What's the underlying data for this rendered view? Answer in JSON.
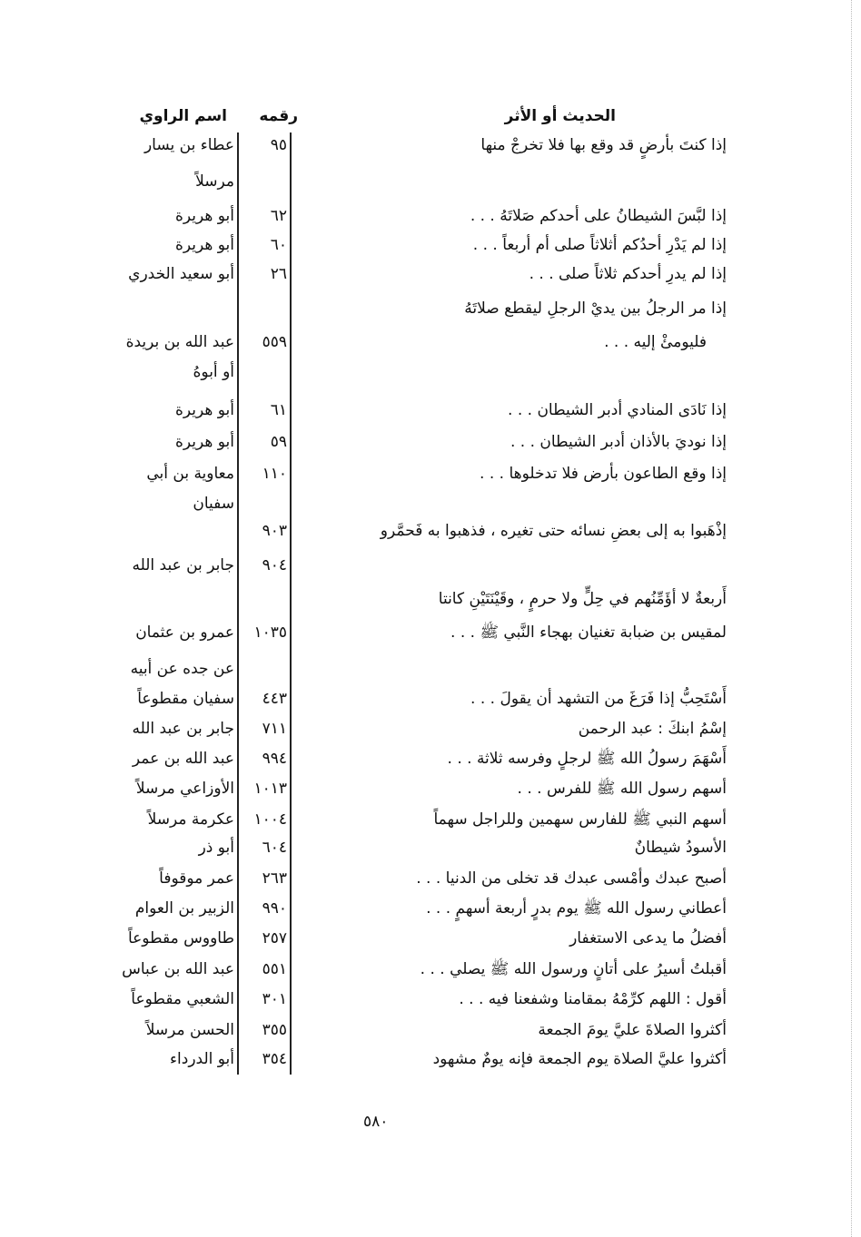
{
  "headers": {
    "hadith": "الحديث أو الأثر",
    "number": "رقمه",
    "narrator": "اسم الراوي"
  },
  "lines": [
    {
      "hadith": "إذا كنتَ بأرضٍ قد وقع بها فلا تخرجْ منها",
      "number": "٩٥",
      "narrator": "عطاء بن يسار"
    },
    {
      "hadith": "",
      "number": "",
      "narrator": "مرسلاً"
    },
    {
      "hadith": "إذا لبَّسَ الشيطانُ على أحدكم صَلاتَهُ . . .",
      "number": "٦٢",
      "narrator": "أبو هريرة"
    },
    {
      "hadith": "إذا لم يَدْرِ أحدُكم أثلاثاً صلى أم أربعاً . . .",
      "number": "٦٠",
      "narrator": "أبو هريرة"
    },
    {
      "hadith": "إذا لم يدرِ أحدكم ثلاثاً صلى . . .",
      "number": "٢٦",
      "narrator": "أبو سعيد الخدري"
    },
    {
      "hadith": "إذا مر الرجلُ بين يديْ الرجلِ ليقطع صلاتَهُ",
      "number": "",
      "narrator": ""
    },
    {
      "hadith": "فليومئْ إليه . . .",
      "number": "٥٥٩",
      "narrator": "عبد الله بن بريدة"
    },
    {
      "hadith": "",
      "number": "",
      "narrator": "أو أبوهُ"
    },
    {
      "hadith": "إذا نَادَى المنادي أدبر الشيطان . . .",
      "number": "٦١",
      "narrator": "أبو هريرة"
    },
    {
      "hadith": "إذا نوديَ بالأذان أدبر الشيطان . . .",
      "number": "٥٩",
      "narrator": "أبو هريرة"
    },
    {
      "hadith": "إذا وقع الطاعون بأرض فلا تدخلوها . . .",
      "number": "١١٠",
      "narrator": "معاوية بن أبي"
    },
    {
      "hadith": "",
      "number": "",
      "narrator": "سفيان"
    },
    {
      "hadith": "إذْهَبوا به إلى بعضِ نسائه حتى تغيره ، فذهبوا به فَحمَّرو",
      "number": "٩٠٣",
      "narrator": ""
    },
    {
      "hadith": "",
      "number": "٩٠٤",
      "narrator": "جابر بن عبد الله"
    },
    {
      "hadith": "أَربعةٌ لا أؤَمِّنُهم في حِلٍّ ولا حرمٍ ، وقَيْنَتَيْنِ كانتا",
      "number": "",
      "narrator": ""
    },
    {
      "hadith": "لمقيس بن ضبابة تغنيان بهجاء النَّبي ﷺ . . .",
      "number": "١٠٣٥",
      "narrator": "عمرو بن عثمان"
    },
    {
      "hadith": "",
      "number": "",
      "narrator": "عن جده عن أبيه"
    },
    {
      "hadith": "أَسْتَحِبُّ إذا فَرَغَ من التشهد أن يقولَ . . .",
      "number": "٤٤٣",
      "narrator": "سفيان مقطوعاً"
    },
    {
      "hadith": "إسْمُ ابنكَ : عبد الرحمن",
      "number": "٧١١",
      "narrator": "جابر بن عبد الله"
    },
    {
      "hadith": "أَسْهَمَ رسولُ الله ﷺ لرجلٍ وفرسه ثلاثة . . .",
      "number": "٩٩٤",
      "narrator": "عبد الله بن عمر"
    },
    {
      "hadith": "أسهم رسول الله ﷺ للفرس . . .",
      "number": "١٠١٣",
      "narrator": "الأوزاعي مرسلاً"
    },
    {
      "hadith": "أسهم النبي ﷺ للفارس سهمين وللراجل سهماً",
      "number": "١٠٠٤",
      "narrator": "عكرمة مرسلاً"
    },
    {
      "hadith": "الأسودُ شيطانٌ",
      "number": "٦٠٤",
      "narrator": "أبو ذر"
    },
    {
      "hadith": "أصبح عبدك وأمْسى عبدك قد تخلى من الدنيا . . .",
      "number": "٢٦٣",
      "narrator": "عمر موقوفاً"
    },
    {
      "hadith": "أعطاني رسول الله ﷺ يوم بدرٍ أربعة أسهمٍ . . .",
      "number": "٩٩٠",
      "narrator": "الزبير بن العوام"
    },
    {
      "hadith": "أفضلُ ما يدعى الاستغفار",
      "number": "٢٥٧",
      "narrator": "طاووس مقطوعاً"
    },
    {
      "hadith": "أقبلتُ أسيرُ على أتانٍ ورسول الله ﷺ يصلي . . .",
      "number": "٥٥١",
      "narrator": "عبد الله بن عباس"
    },
    {
      "hadith": "أقول : اللهم كرِّمْهُ بمقامنا وشفعنا فيه . . .",
      "number": "٣٠١",
      "narrator": "الشعبي مقطوعاً"
    },
    {
      "hadith": "أكثروا الصلاةَ عليَّ يومَ الجمعة",
      "number": "٣٥٥",
      "narrator": "الحسن مرسلاً"
    },
    {
      "hadith": "أكثروا عليَّ الصلاة يوم الجمعة فإنه يومٌ مشهود",
      "number": "٣٥٤",
      "narrator": "أبو الدرداء"
    }
  ],
  "page_number": "٥٨٠"
}
